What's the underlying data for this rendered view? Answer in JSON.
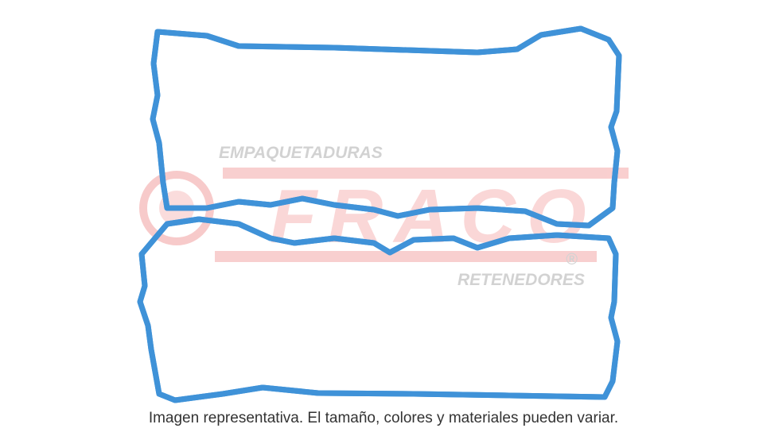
{
  "watermark": {
    "top": "EMPAQUETADURAS",
    "brand": "FRACO",
    "registered": "®",
    "bottom": "RETENEDORES"
  },
  "caption": "Imagen representativa. El tamaño, colores y materiales pueden variar."
}
